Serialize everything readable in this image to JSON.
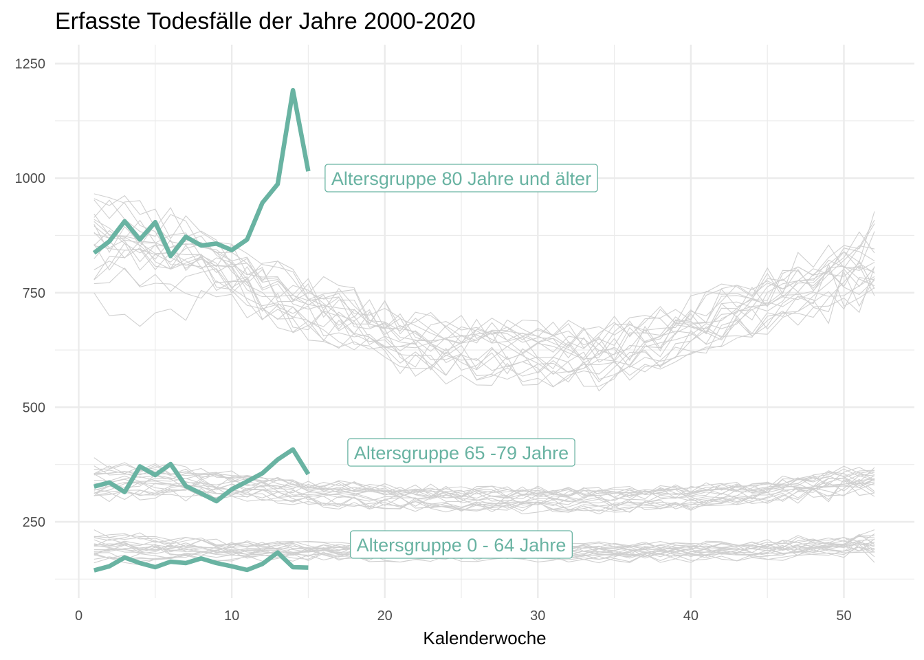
{
  "chart_data": {
    "type": "line",
    "title": "Erfasste Todesfälle der Jahre 2000-2020",
    "xlabel": "Kalenderwoche",
    "ylabel": "",
    "xlim": [
      0,
      52
    ],
    "ylim": [
      130,
      1250
    ],
    "x_ticks": [
      0,
      10,
      20,
      30,
      40,
      50
    ],
    "y_ticks": [
      250,
      500,
      750,
      1000,
      1250
    ],
    "grid": true,
    "colors": {
      "highlight": "#69b3a2",
      "background_lines": "#d0d0d0",
      "grid": "#ebebeb"
    },
    "highlighted_series": [
      {
        "label": "Altersgruppe 80 Jahre und älter",
        "x": [
          1,
          2,
          3,
          4,
          5,
          6,
          7,
          8,
          9,
          10,
          11,
          12,
          13,
          14,
          15
        ],
        "values": [
          837,
          862,
          906,
          866,
          904,
          830,
          872,
          853,
          857,
          843,
          866,
          946,
          987,
          1192,
          1015
        ]
      },
      {
        "label": "Altersgruppe 65 -79 Jahre",
        "x": [
          1,
          2,
          3,
          4,
          5,
          6,
          7,
          8,
          9,
          10,
          11,
          12,
          13,
          14,
          15
        ],
        "values": [
          327,
          336,
          315,
          371,
          352,
          376,
          328,
          312,
          295,
          321,
          338,
          356,
          386,
          408,
          354
        ]
      },
      {
        "label": "Altersgruppe 0 - 64 Jahre",
        "x": [
          1,
          2,
          3,
          4,
          5,
          6,
          7,
          8,
          9,
          10,
          11,
          12,
          13,
          14,
          15
        ],
        "values": [
          144,
          153,
          172,
          160,
          151,
          163,
          160,
          170,
          160,
          153,
          145,
          158,
          183,
          151,
          150
        ]
      }
    ],
    "background_series_note": "",
    "background_groups": [
      {
        "profile_x": [
          1,
          3,
          6,
          8,
          10,
          13,
          18,
          21,
          25,
          30,
          34,
          38,
          42,
          46,
          50,
          52
        ],
        "profile_y": [
          860,
          850,
          830,
          820,
          790,
          740,
          680,
          640,
          620,
          615,
          610,
          640,
          690,
          730,
          770,
          790
        ],
        "spread": 75,
        "years": 20
      },
      {
        "profile_x": [
          1,
          6,
          10,
          15,
          20,
          25,
          30,
          35,
          40,
          45,
          50,
          52
        ],
        "profile_y": [
          340,
          340,
          330,
          315,
          305,
          300,
          300,
          300,
          305,
          315,
          330,
          335
        ],
        "spread": 30,
        "years": 20
      },
      {
        "profile_x": [
          1,
          10,
          20,
          30,
          40,
          52
        ],
        "profile_y": [
          188,
          186,
          184,
          183,
          185,
          192
        ],
        "spread": 22,
        "years": 20
      }
    ]
  }
}
